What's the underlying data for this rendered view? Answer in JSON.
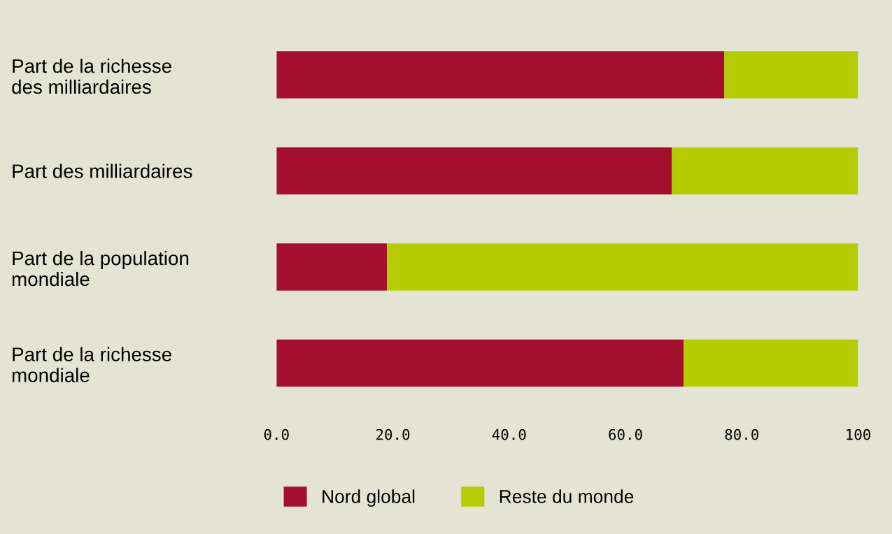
{
  "chart_data": {
    "type": "bar",
    "orientation": "horizontal",
    "stacked": true,
    "categories": [
      "Part de la richesse\ndes milliardaires",
      "Part des milliardaires",
      "Part de la population\nmondiale",
      "Part de la richesse\nmondiale"
    ],
    "series": [
      {
        "name": "Nord global",
        "color": "#a3102e",
        "values": [
          77,
          68,
          19,
          70
        ]
      },
      {
        "name": "Reste du monde",
        "color": "#b5cc00",
        "values": [
          23,
          32,
          81,
          30
        ]
      }
    ],
    "xlim": [
      0,
      100
    ],
    "xticks": [
      {
        "value": 0,
        "label": "0.0"
      },
      {
        "value": 20,
        "label": "20.0"
      },
      {
        "value": 40,
        "label": "40.0"
      },
      {
        "value": 60,
        "label": "60.0"
      },
      {
        "value": 80,
        "label": "80.0"
      },
      {
        "value": 100,
        "label": "100"
      }
    ],
    "grid": false,
    "legend": "bottom"
  }
}
